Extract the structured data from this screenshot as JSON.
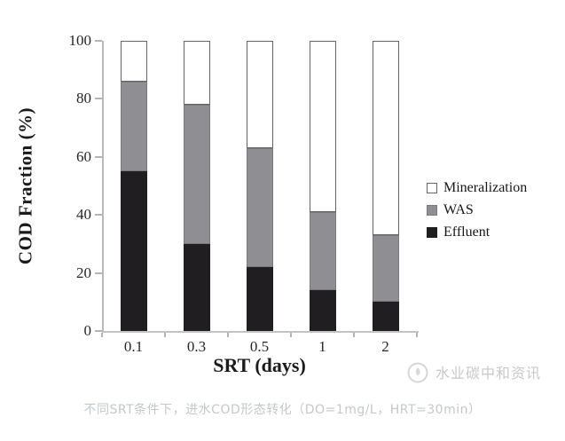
{
  "chart_data": {
    "type": "bar",
    "stacked": true,
    "categories": [
      "0.1",
      "0.3",
      "0.5",
      "1",
      "2"
    ],
    "series": [
      {
        "name": "Effluent",
        "color": "#211e21",
        "border": "#211e21",
        "values": [
          55,
          30,
          22,
          14,
          10
        ]
      },
      {
        "name": "WAS",
        "color": "#8f8f93",
        "border": "#7a7a7e",
        "values": [
          31,
          48,
          41,
          27,
          23
        ]
      },
      {
        "name": "Mineralization",
        "color": "#ffffff",
        "border": "#66666a",
        "values": [
          14,
          22,
          37,
          59,
          67
        ]
      }
    ],
    "stack_totals": [
      100,
      100,
      100,
      100,
      100
    ],
    "xlabel": "SRT (days)",
    "ylabel": "COD Fraction (%)",
    "ylim": [
      0,
      100
    ],
    "yticks": [
      0,
      20,
      40,
      60,
      80,
      100
    ],
    "grid": false,
    "legend_position": "right-middle",
    "legend_order_top_to_bottom": [
      "Mineralization",
      "WAS",
      "Effluent"
    ]
  },
  "axis": {
    "line_color": "#b9b9bc",
    "tick_color": "#b4b4b7",
    "text_color": "#262626"
  },
  "legend_text_color": "#161616",
  "caption": {
    "text": "不同SRT条件下，进水COD形态转化（DO=1mg/L，HRT=30min）",
    "color": "#c4c8cb"
  },
  "watermark": {
    "text": "水业碳中和资讯",
    "color": "#c8c8c8"
  }
}
